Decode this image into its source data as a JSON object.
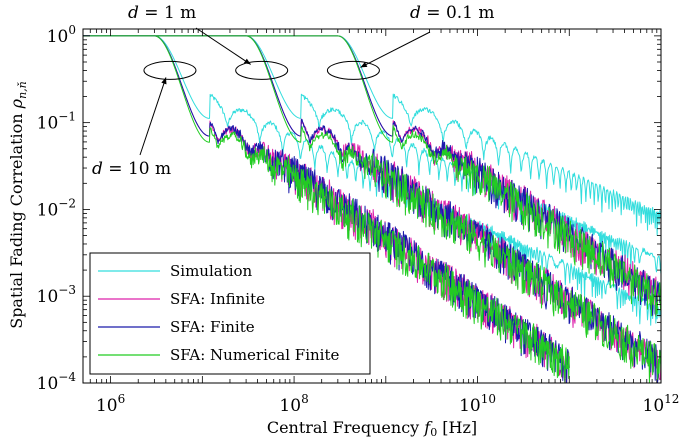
{
  "chart_data": {
    "type": "line",
    "xlabel": "Central Frequency f0 [Hz]",
    "ylabel": "Spatial Fading Correlation ρ_{n,ň}",
    "x_scale": "log",
    "y_scale": "log",
    "xlim": [
      500000,
      1000000000000
    ],
    "ylim": [
      0.0001,
      1.2
    ],
    "grid": false,
    "legend_position": "bottom-left",
    "x_ticks": [
      {
        "value": 1000000,
        "base": "10",
        "exp": "6"
      },
      {
        "value": 100000000,
        "base": "10",
        "exp": "8"
      },
      {
        "value": 10000000000,
        "base": "10",
        "exp": "10"
      },
      {
        "value": 1000000000000,
        "base": "10",
        "exp": "12"
      }
    ],
    "y_ticks": [
      {
        "value": 1,
        "base": "10",
        "exp": "0"
      },
      {
        "value": 0.1,
        "base": "10",
        "exp": "−1"
      },
      {
        "value": 0.01,
        "base": "10",
        "exp": "−2"
      },
      {
        "value": 0.001,
        "base": "10",
        "exp": "−3"
      },
      {
        "value": 0.0001,
        "base": "10",
        "exp": "−4"
      }
    ],
    "series": [
      {
        "name": "Simulation",
        "color": "#33dddd"
      },
      {
        "name": "SFA: Infinite",
        "color": "#dd22aa"
      },
      {
        "name": "SFA: Finite",
        "color": "#1a1aaa"
      },
      {
        "name": "SFA: Numerical Finite",
        "color": "#22cc22"
      }
    ],
    "groups": [
      {
        "label": "d = 10 m",
        "cutoff_hz": 3000000,
        "first_min_hz": 12000000,
        "first_min_value": 0.07,
        "sim_decay_value_1e12": 0.0004,
        "sfa_end_hz": 100000000000,
        "sfa_end_value": 0.0001
      },
      {
        "label": "d = 1 m",
        "cutoff_hz": 30000000,
        "first_min_hz": 120000000,
        "first_min_value": 0.07,
        "sim_decay_value_1e12": 0.0015,
        "sfa_end_hz": 1000000000000,
        "sfa_end_value": 0.0001
      },
      {
        "label": "d = 0.1 m",
        "cutoff_hz": 300000000,
        "first_min_hz": 1200000000,
        "first_min_value": 0.07,
        "sim_decay_value_1e12": 0.005,
        "sfa_end_hz": 1000000000000,
        "sfa_end_value": 0.0006
      }
    ],
    "annotations": [
      {
        "text": "d = 10 m",
        "points_to_hz": 3000000
      },
      {
        "text": "d = 1 m",
        "points_to_hz": 30000000
      },
      {
        "text": "d = 0.1 m",
        "points_to_hz": 300000000
      }
    ]
  }
}
